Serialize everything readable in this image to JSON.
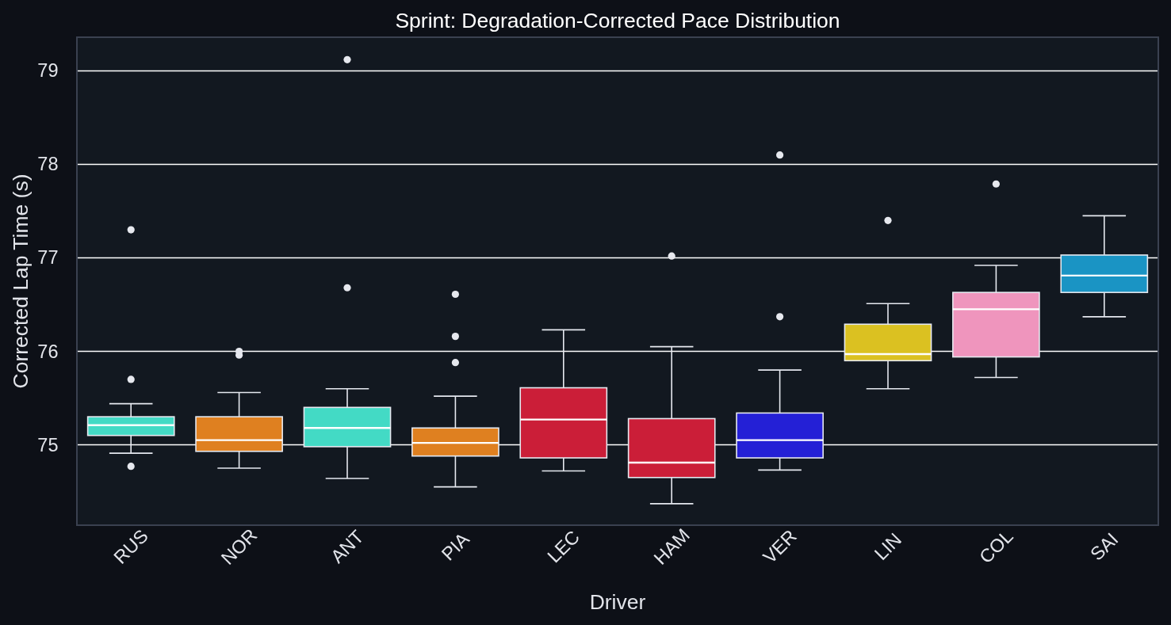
{
  "chart_data": {
    "type": "box",
    "title": "Sprint: Degradation-Corrected Pace Distribution",
    "xlabel": "Driver",
    "ylabel": "Corrected Lap Time (s)",
    "categories": [
      "RUS",
      "NOR",
      "ANT",
      "PIA",
      "LEC",
      "HAM",
      "VER",
      "LIN",
      "COL",
      "SAI"
    ],
    "colors": [
      "#43dac5",
      "#df8020",
      "#43dac5",
      "#df8020",
      "#cb1e38",
      "#cb1e38",
      "#2420d6",
      "#dbc121",
      "#ef95bd",
      "#1a94c4"
    ],
    "boxes": [
      {
        "low": 74.91,
        "q1": 75.1,
        "median": 75.21,
        "q3": 75.3,
        "high": 75.44,
        "outliers": [
          77.3,
          75.7,
          74.77
        ]
      },
      {
        "low": 74.75,
        "q1": 74.93,
        "median": 75.05,
        "q3": 75.3,
        "high": 75.56,
        "outliers": [
          76.0,
          75.96
        ]
      },
      {
        "low": 74.64,
        "q1": 74.98,
        "median": 75.18,
        "q3": 75.4,
        "high": 75.6,
        "outliers": [
          79.12,
          76.68
        ]
      },
      {
        "low": 74.55,
        "q1": 74.88,
        "median": 75.02,
        "q3": 75.18,
        "high": 75.52,
        "outliers": [
          76.61,
          76.16,
          75.88
        ]
      },
      {
        "low": 74.72,
        "q1": 74.86,
        "median": 75.27,
        "q3": 75.61,
        "high": 76.23
      },
      {
        "low": 74.37,
        "q1": 74.65,
        "median": 74.81,
        "q3": 75.28,
        "high": 76.05,
        "outliers": [
          77.02
        ]
      },
      {
        "low": 74.73,
        "q1": 74.86,
        "median": 75.05,
        "q3": 75.34,
        "high": 75.8,
        "outliers": [
          78.1,
          76.37
        ]
      },
      {
        "low": 75.6,
        "q1": 75.9,
        "median": 75.97,
        "q3": 76.29,
        "high": 76.51,
        "outliers": [
          77.4
        ]
      },
      {
        "low": 75.72,
        "q1": 75.94,
        "median": 76.45,
        "q3": 76.63,
        "high": 76.92,
        "outliers": [
          77.79
        ]
      },
      {
        "low": 76.37,
        "q1": 76.63,
        "median": 76.81,
        "q3": 77.03,
        "high": 77.45
      }
    ],
    "ylim": [
      74.14,
      79.36
    ],
    "yticks": [
      75,
      76,
      77,
      78,
      79
    ],
    "grid": "y"
  }
}
